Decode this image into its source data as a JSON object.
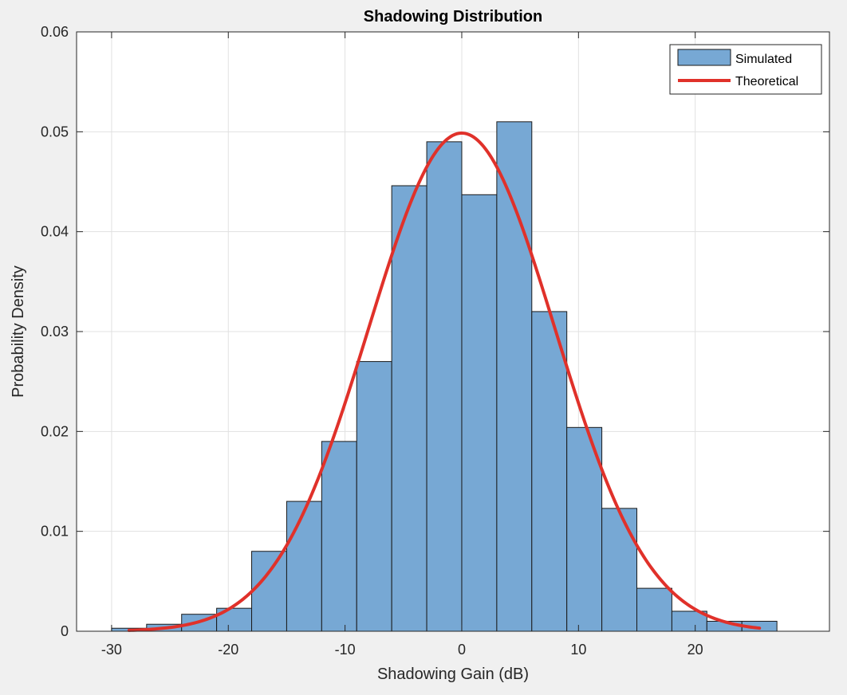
{
  "chart_data": {
    "type": "bar",
    "title": "Shadowing Distribution",
    "xlabel": "Shadowing Gain (dB)",
    "ylabel": "Probability Density",
    "xlim": [
      -33,
      31.5
    ],
    "ylim": [
      0,
      0.06
    ],
    "xticks": [
      -30,
      -20,
      -10,
      0,
      10,
      20
    ],
    "xtick_labels": [
      "-30",
      "-20",
      "-10",
      "0",
      "10",
      "20"
    ],
    "yticks": [
      0,
      0.01,
      0.02,
      0.03,
      0.04,
      0.05,
      0.06
    ],
    "ytick_labels": [
      "0",
      "0.01",
      "0.02",
      "0.03",
      "0.04",
      "0.05",
      "0.06"
    ],
    "grid": true,
    "legend_position": "top-right",
    "histogram": {
      "name": "Simulated",
      "bin_edges": [
        -30,
        -27,
        -24,
        -21,
        -18,
        -15,
        -12,
        -9,
        -6,
        -3,
        0,
        3,
        6,
        9,
        12,
        15,
        18,
        21,
        24,
        27
      ],
      "values": [
        0.0003,
        0.0007,
        0.0017,
        0.0023,
        0.008,
        0.013,
        0.019,
        0.027,
        0.0446,
        0.049,
        0.0437,
        0.051,
        0.032,
        0.0204,
        0.0123,
        0.0043,
        0.002,
        0.001,
        0.001
      ],
      "color": "#77a8d4",
      "edge_color": "#1a1a1a"
    },
    "curve": {
      "name": "Theoretical",
      "distribution": "normal",
      "mean": 0,
      "std": 8,
      "x_range": [
        -28.5,
        25.5
      ],
      "color": "#e0312a"
    },
    "legend": [
      "Simulated",
      "Theoretical"
    ]
  }
}
